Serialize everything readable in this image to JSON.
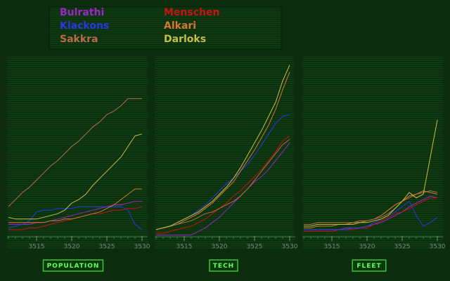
{
  "legend": [
    {
      "name": "Bulrathi",
      "color": "#9a28c8"
    },
    {
      "name": "Menschen",
      "color": "#c81414"
    },
    {
      "name": "Klackons",
      "color": "#2838e8"
    },
    {
      "name": "Alkari",
      "color": "#d87830"
    },
    {
      "name": "Sakkra",
      "color": "#b86c4c"
    },
    {
      "name": "Darloks",
      "color": "#c8c040"
    }
  ],
  "x": [
    3511,
    3512,
    3513,
    3514,
    3515,
    3516,
    3517,
    3518,
    3519,
    3520,
    3521,
    3522,
    3523,
    3524,
    3525,
    3526,
    3527,
    3528,
    3529,
    3530
  ],
  "xlim": [
    3511,
    3530
  ],
  "ylim": [
    0,
    100
  ],
  "xticks": [
    3515,
    3520,
    3525,
    3530
  ],
  "chart_data": [
    {
      "type": "line",
      "button": "POPULATION",
      "series": [
        {
          "values": [
            7,
            7,
            7,
            7,
            8,
            8,
            9,
            10,
            11,
            12,
            13,
            14,
            15,
            16,
            17,
            18,
            18,
            19,
            20,
            20
          ]
        },
        {
          "values": [
            4,
            4,
            4,
            5,
            5,
            6,
            7,
            8,
            9,
            10,
            11,
            12,
            13,
            13,
            14,
            15,
            15,
            16,
            16,
            17
          ]
        },
        {
          "values": [
            5,
            6,
            7,
            9,
            14,
            15,
            15,
            16,
            16,
            16,
            17,
            17,
            17,
            17,
            17,
            17,
            17,
            15,
            7,
            4
          ]
        },
        {
          "values": [
            8,
            8,
            8,
            8,
            8,
            8,
            9,
            9,
            10,
            10,
            11,
            12,
            13,
            14,
            16,
            18,
            21,
            24,
            27,
            27
          ]
        },
        {
          "values": [
            17,
            21,
            25,
            28,
            32,
            36,
            40,
            43,
            47,
            51,
            54,
            58,
            62,
            65,
            69,
            71,
            74,
            78,
            78,
            78
          ]
        },
        {
          "values": [
            11,
            10,
            10,
            10,
            10,
            11,
            12,
            13,
            15,
            19,
            21,
            24,
            29,
            33,
            37,
            41,
            45,
            51,
            57,
            58
          ]
        }
      ]
    },
    {
      "type": "line",
      "button": "TECH",
      "series": [
        {
          "values": [
            1,
            1,
            1,
            1,
            1,
            1,
            3,
            5,
            8,
            11,
            15,
            19,
            23,
            27,
            31,
            34,
            38,
            43,
            48,
            53
          ]
        },
        {
          "values": [
            2,
            2,
            3,
            4,
            5,
            6,
            8,
            10,
            13,
            16,
            19,
            23,
            26,
            30,
            34,
            38,
            43,
            48,
            54,
            57
          ]
        },
        {
          "values": [
            4,
            5,
            6,
            8,
            10,
            12,
            15,
            18,
            22,
            26,
            30,
            33,
            37,
            41,
            46,
            52,
            58,
            64,
            68,
            69
          ]
        },
        {
          "values": [
            4,
            5,
            6,
            7,
            9,
            11,
            13,
            16,
            19,
            23,
            27,
            31,
            37,
            43,
            49,
            56,
            63,
            72,
            83,
            93
          ]
        },
        {
          "values": [
            4,
            5,
            6,
            7,
            8,
            9,
            11,
            13,
            14,
            16,
            18,
            20,
            23,
            27,
            32,
            37,
            42,
            47,
            52,
            55
          ]
        },
        {
          "values": [
            4,
            5,
            6,
            8,
            10,
            12,
            14,
            17,
            20,
            24,
            28,
            33,
            39,
            46,
            53,
            60,
            68,
            76,
            88,
            97
          ]
        }
      ]
    },
    {
      "type": "line",
      "button": "FLEET",
      "series": [
        {
          "values": [
            4,
            4,
            4,
            4,
            4,
            4,
            5,
            5,
            5,
            6,
            7,
            8,
            10,
            12,
            14,
            17,
            19,
            21,
            23,
            22
          ]
        },
        {
          "values": [
            3,
            3,
            3,
            3,
            3,
            4,
            4,
            4,
            5,
            5,
            7,
            9,
            11,
            13,
            14,
            16,
            18,
            20,
            22,
            22
          ]
        },
        {
          "values": [
            4,
            4,
            4,
            4,
            4,
            4,
            4,
            5,
            5,
            6,
            8,
            10,
            12,
            14,
            17,
            20,
            12,
            6,
            8,
            11
          ]
        },
        {
          "values": [
            5,
            5,
            6,
            6,
            6,
            7,
            7,
            8,
            8,
            9,
            10,
            12,
            15,
            18,
            20,
            23,
            24,
            26,
            25,
            24
          ]
        },
        {
          "values": [
            7,
            7,
            8,
            8,
            8,
            8,
            8,
            8,
            9,
            9,
            10,
            11,
            13,
            16,
            20,
            22,
            24,
            25,
            26,
            25
          ]
        },
        {
          "values": [
            6,
            6,
            7,
            7,
            7,
            7,
            7,
            7,
            8,
            8,
            9,
            10,
            12,
            16,
            20,
            25,
            22,
            24,
            45,
            66
          ]
        }
      ]
    }
  ]
}
